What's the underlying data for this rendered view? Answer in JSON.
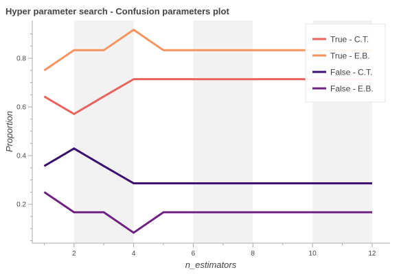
{
  "chart_data": {
    "type": "line",
    "title": "Hyper parameter search - Confusion parameters plot",
    "xlabel": "n_estimators",
    "ylabel": "Proportion",
    "xlim": [
      0.6,
      12.6
    ],
    "ylim": [
      0.04,
      0.955
    ],
    "x_ticks": [
      2,
      4,
      6,
      8,
      10,
      12
    ],
    "y_ticks": [
      0.2,
      0.4,
      0.6,
      0.8
    ],
    "shaded_bands": [
      [
        2,
        4
      ],
      [
        6,
        8
      ],
      [
        10,
        12
      ]
    ],
    "x": [
      1,
      2,
      3,
      4,
      5,
      6,
      7,
      8,
      9,
      10,
      11,
      12
    ],
    "series": [
      {
        "name": "True - C.T.",
        "color": "#e8635d",
        "values": [
          0.643,
          0.571,
          0.643,
          0.714,
          0.714,
          0.714,
          0.714,
          0.714,
          0.714,
          0.714,
          0.714,
          0.714
        ]
      },
      {
        "name": "True - E.B.",
        "color": "#f6935f",
        "values": [
          0.75,
          0.833,
          0.833,
          0.917,
          0.833,
          0.833,
          0.833,
          0.833,
          0.833,
          0.833,
          0.833,
          0.833
        ]
      },
      {
        "name": "False - C.T.",
        "color": "#3b0f70",
        "values": [
          0.357,
          0.429,
          0.357,
          0.286,
          0.286,
          0.286,
          0.286,
          0.286,
          0.286,
          0.286,
          0.286,
          0.286
        ]
      },
      {
        "name": "False - E.B.",
        "color": "#6e2182",
        "values": [
          0.25,
          0.167,
          0.167,
          0.083,
          0.167,
          0.167,
          0.167,
          0.167,
          0.167,
          0.167,
          0.167,
          0.167
        ]
      }
    ],
    "legend_position": "top-right",
    "grid": false
  }
}
